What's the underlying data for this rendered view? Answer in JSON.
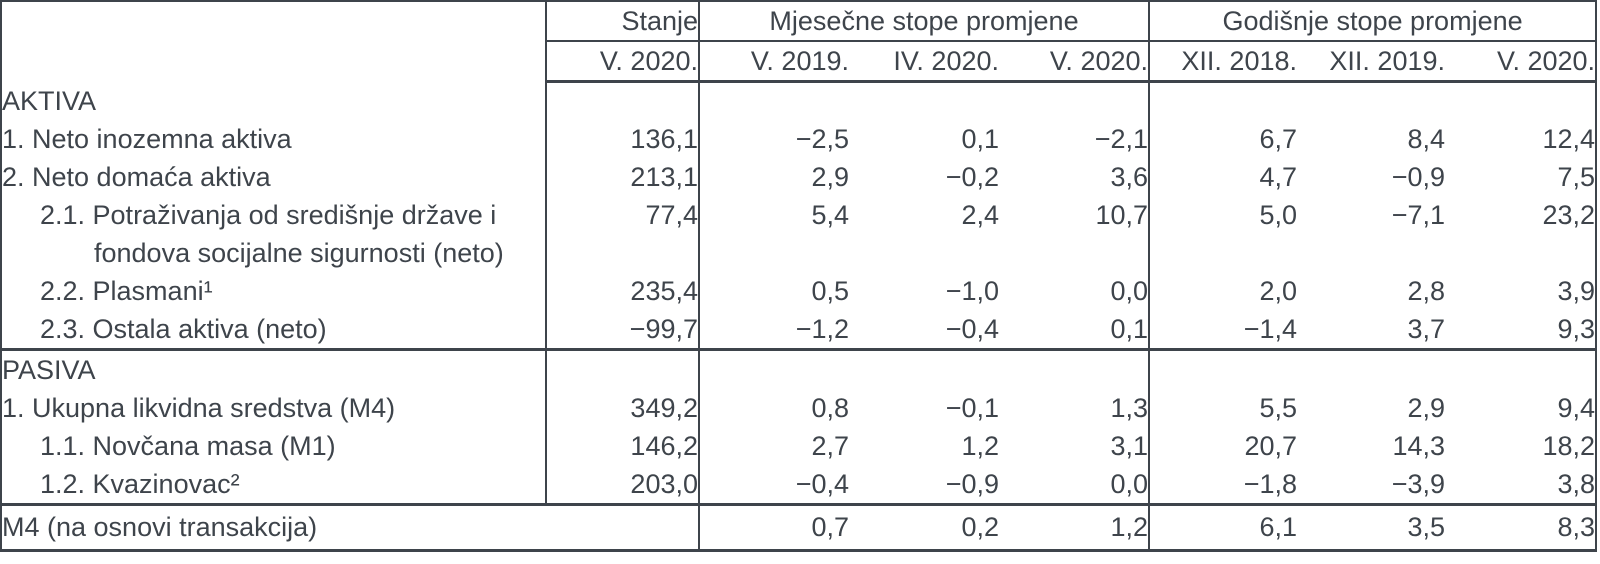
{
  "colors": {
    "text": "#3e444b",
    "border": "#3e444b",
    "background": "#ffffff"
  },
  "table": {
    "corner_label": "",
    "col_groups": {
      "stanje": "Stanje",
      "monthly": "Mjesečne stope promjene",
      "yearly": "Godišnje stope promjene"
    },
    "sub_headers": [
      "V. 2020.",
      "V. 2019.",
      "IV. 2020.",
      "V. 2020.",
      "XII. 2018.",
      "XII. 2019.",
      "V. 2020."
    ],
    "rows": [
      {
        "type": "section",
        "label": "AKTIVA",
        "values": [
          "",
          "",
          "",
          "",
          "",
          "",
          ""
        ]
      },
      {
        "type": "item",
        "label": "1. Neto inozemna aktiva",
        "values": [
          "136,1",
          "−2,5",
          "0,1",
          "−2,1",
          "6,7",
          "8,4",
          "12,4"
        ]
      },
      {
        "type": "item",
        "label": "2. Neto domaća aktiva",
        "values": [
          "213,1",
          "2,9",
          "−0,2",
          "3,6",
          "4,7",
          "−0,9",
          "7,5"
        ]
      },
      {
        "type": "sub",
        "label": "2.1. Potraživanja od središnje države i",
        "label2": "fondova socijalne sigurnosti (neto)",
        "values": [
          "77,4",
          "5,4",
          "2,4",
          "10,7",
          "5,0",
          "−7,1",
          "23,2"
        ]
      },
      {
        "type": "sub",
        "label": "2.2. Plasmani¹",
        "values": [
          "235,4",
          "0,5",
          "−1,0",
          "0,0",
          "2,0",
          "2,8",
          "3,9"
        ]
      },
      {
        "type": "sub",
        "label": "2.3. Ostala aktiva (neto)",
        "values": [
          "−99,7",
          "−1,2",
          "−0,4",
          "0,1",
          "−1,4",
          "3,7",
          "9,3"
        ]
      },
      {
        "type": "section",
        "thick_top": true,
        "label": "PASIVA",
        "values": [
          "",
          "",
          "",
          "",
          "",
          "",
          ""
        ]
      },
      {
        "type": "item",
        "label": "1. Ukupna likvidna sredstva (M4)",
        "values": [
          "349,2",
          "0,8",
          "−0,1",
          "1,3",
          "5,5",
          "2,9",
          "9,4"
        ]
      },
      {
        "type": "sub",
        "label": "1.1. Novčana masa (M1)",
        "values": [
          "146,2",
          "2,7",
          "1,2",
          "3,1",
          "20,7",
          "14,3",
          "18,2"
        ]
      },
      {
        "type": "sub",
        "label": "1.2. Kvazinovac²",
        "values": [
          "203,0",
          "−0,4",
          "−0,9",
          "0,0",
          "−1,8",
          "−3,9",
          "3,8"
        ]
      },
      {
        "type": "total",
        "thick_top": true,
        "merge_first": true,
        "label": "M4 (na osnovi transakcija)",
        "values": [
          "",
          "0,7",
          "0,2",
          "1,2",
          "6,1",
          "3,5",
          "8,3"
        ]
      }
    ]
  }
}
